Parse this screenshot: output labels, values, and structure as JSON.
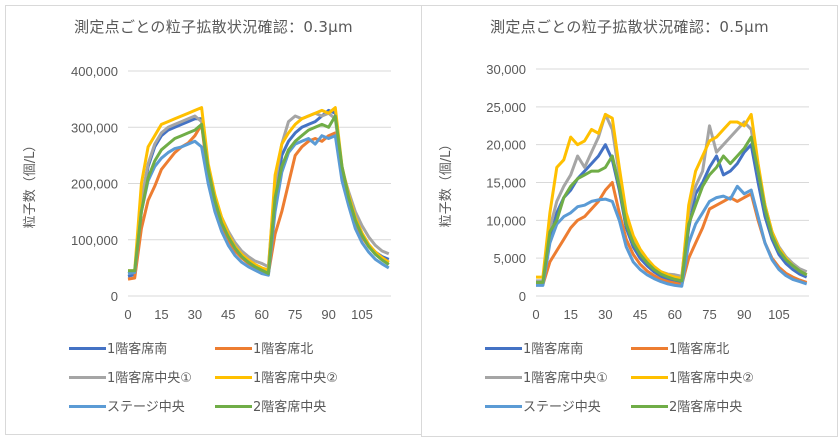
{
  "colors": {
    "1階客席南": "#4472c4",
    "1階客席北": "#ed7d31",
    "1階客席中央①": "#a5a5a5",
    "1階客席中央②": "#ffc000",
    "ステージ中央": "#5b9bd5",
    "2階客席中央": "#70ad47"
  },
  "chart_data": [
    {
      "type": "line",
      "title": "測定点ごとの粒子拡散状況確認：0.3μm",
      "xlabel": "",
      "ylabel": "粒子数（個/L）",
      "xlim": [
        0,
        118
      ],
      "ylim": [
        0,
        400000
      ],
      "grid": true,
      "legend": "bottom",
      "x_ticks": [
        "0",
        "15",
        "30",
        "45",
        "60",
        "75",
        "90",
        "105"
      ],
      "y_ticks": [
        "0",
        "100,000",
        "200,000",
        "300,000",
        "400,000"
      ],
      "x": [
        0,
        3,
        6,
        9,
        12,
        15,
        18,
        21,
        24,
        27,
        30,
        33,
        36,
        39,
        42,
        45,
        48,
        51,
        54,
        57,
        60,
        63,
        66,
        69,
        72,
        75,
        78,
        81,
        84,
        87,
        90,
        93,
        96,
        99,
        102,
        105,
        108,
        111,
        114,
        117
      ],
      "series": [
        {
          "name": "1階客席南",
          "values": [
            35000,
            38000,
            160000,
            230000,
            265000,
            285000,
            295000,
            300000,
            305000,
            310000,
            315000,
            315000,
            230000,
            170000,
            130000,
            105000,
            85000,
            70000,
            60000,
            52000,
            45000,
            40000,
            170000,
            250000,
            275000,
            290000,
            300000,
            305000,
            310000,
            320000,
            330000,
            325000,
            220000,
            180000,
            140000,
            110000,
            90000,
            78000,
            70000,
            65000
          ]
        },
        {
          "name": "1階客席北",
          "values": [
            30000,
            32000,
            120000,
            170000,
            195000,
            225000,
            240000,
            255000,
            265000,
            272000,
            285000,
            305000,
            210000,
            160000,
            125000,
            100000,
            80000,
            68000,
            58000,
            50000,
            44000,
            40000,
            110000,
            150000,
            200000,
            250000,
            265000,
            275000,
            280000,
            275000,
            285000,
            290000,
            210000,
            165000,
            130000,
            105000,
            88000,
            76000,
            68000,
            60000
          ]
        },
        {
          "name": "1階客席中央①",
          "values": [
            40000,
            42000,
            170000,
            235000,
            270000,
            290000,
            300000,
            305000,
            310000,
            315000,
            320000,
            310000,
            225000,
            175000,
            140000,
            115000,
            95000,
            80000,
            70000,
            62000,
            58000,
            52000,
            200000,
            270000,
            310000,
            320000,
            315000,
            320000,
            325000,
            320000,
            325000,
            315000,
            225000,
            185000,
            150000,
            125000,
            105000,
            90000,
            80000,
            75000
          ]
        },
        {
          "name": "1階客席中央②",
          "values": [
            45000,
            45000,
            200000,
            265000,
            285000,
            305000,
            310000,
            315000,
            320000,
            325000,
            330000,
            335000,
            235000,
            180000,
            140000,
            110000,
            88000,
            74000,
            64000,
            56000,
            50000,
            46000,
            215000,
            270000,
            290000,
            305000,
            315000,
            320000,
            325000,
            330000,
            325000,
            335000,
            230000,
            180000,
            140000,
            112000,
            92000,
            78000,
            68000,
            60000
          ]
        },
        {
          "name": "ステージ中央",
          "values": [
            40000,
            42000,
            150000,
            205000,
            230000,
            245000,
            255000,
            262000,
            265000,
            270000,
            275000,
            265000,
            200000,
            150000,
            115000,
            90000,
            72000,
            60000,
            52000,
            46000,
            40000,
            37000,
            150000,
            220000,
            255000,
            270000,
            275000,
            280000,
            270000,
            285000,
            280000,
            285000,
            205000,
            160000,
            120000,
            95000,
            78000,
            65000,
            57000,
            50000
          ]
        },
        {
          "name": "2階客席中央",
          "values": [
            45000,
            45000,
            150000,
            210000,
            240000,
            260000,
            270000,
            280000,
            285000,
            290000,
            295000,
            305000,
            225000,
            170000,
            130000,
            105000,
            85000,
            70000,
            60000,
            52000,
            46000,
            40000,
            175000,
            230000,
            260000,
            275000,
            285000,
            295000,
            300000,
            305000,
            300000,
            320000,
            230000,
            175000,
            135000,
            108000,
            88000,
            74000,
            64000,
            56000
          ]
        }
      ]
    },
    {
      "type": "line",
      "title": "測定点ごとの粒子拡散状況確認：0.5μm",
      "xlabel": "",
      "ylabel": "粒子数（個/L）",
      "xlim": [
        0,
        118
      ],
      "ylim": [
        0,
        30000
      ],
      "grid": true,
      "legend": "bottom",
      "x_ticks": [
        "0",
        "15",
        "30",
        "45",
        "60",
        "75",
        "90",
        "105"
      ],
      "y_ticks": [
        "0",
        "5,000",
        "10,000",
        "15,000",
        "20,000",
        "25,000",
        "30,000"
      ],
      "x": [
        0,
        3,
        6,
        9,
        12,
        15,
        18,
        21,
        24,
        27,
        30,
        33,
        36,
        39,
        42,
        45,
        48,
        51,
        54,
        57,
        60,
        63,
        66,
        69,
        72,
        75,
        78,
        81,
        84,
        87,
        90,
        93,
        96,
        99,
        102,
        105,
        108,
        111,
        114,
        117
      ],
      "series": [
        {
          "name": "1階客席南",
          "values": [
            1600,
            1600,
            7500,
            11000,
            13000,
            14000,
            15500,
            16500,
            17500,
            18500,
            20000,
            18000,
            14000,
            9000,
            6500,
            5000,
            4000,
            3200,
            2600,
            2200,
            2000,
            1800,
            9000,
            13500,
            15000,
            17000,
            18500,
            16000,
            16500,
            17500,
            19000,
            20000,
            15000,
            10500,
            7500,
            5500,
            4300,
            3500,
            2900,
            2500
          ]
        },
        {
          "name": "1階客席北",
          "values": [
            1500,
            1500,
            4500,
            6000,
            7500,
            9000,
            10000,
            10500,
            11500,
            12500,
            14000,
            15000,
            11000,
            7500,
            5500,
            4200,
            3300,
            2700,
            2200,
            1900,
            1700,
            1500,
            5000,
            7000,
            9000,
            11500,
            12000,
            12500,
            13000,
            12500,
            13000,
            13500,
            10000,
            7000,
            5000,
            3800,
            3000,
            2500,
            2100,
            1800
          ]
        },
        {
          "name": "1階客席中央①",
          "values": [
            2000,
            2000,
            9000,
            12500,
            14500,
            16000,
            18500,
            17000,
            19000,
            21000,
            24000,
            22000,
            16000,
            10500,
            7500,
            6000,
            4800,
            3800,
            3200,
            2900,
            2800,
            2600,
            11000,
            14500,
            16500,
            22500,
            19000,
            20000,
            21000,
            22000,
            23000,
            22000,
            16500,
            12000,
            8500,
            6500,
            5200,
            4300,
            3600,
            3200
          ]
        },
        {
          "name": "1階客席中央②",
          "values": [
            2500,
            2500,
            11000,
            17000,
            18000,
            21000,
            20000,
            20500,
            22000,
            21500,
            24000,
            23500,
            17000,
            11000,
            8000,
            6200,
            4900,
            3900,
            3200,
            2800,
            2500,
            2300,
            12000,
            16500,
            18500,
            20500,
            21000,
            22000,
            23000,
            23000,
            22500,
            24000,
            17500,
            12000,
            8500,
            6300,
            5000,
            4000,
            3300,
            2800
          ]
        },
        {
          "name": "ステージ中央",
          "values": [
            1400,
            1400,
            7000,
            9500,
            10500,
            11000,
            11800,
            12000,
            12500,
            12700,
            12800,
            12500,
            10000,
            6500,
            4500,
            3500,
            2800,
            2300,
            1900,
            1600,
            1400,
            1300,
            7000,
            9500,
            11000,
            12500,
            13000,
            13200,
            12800,
            14500,
            13500,
            14000,
            10500,
            7000,
            4800,
            3500,
            2700,
            2200,
            1900,
            1600
          ]
        },
        {
          "name": "2階客席中央",
          "values": [
            1800,
            1800,
            8500,
            10000,
            13000,
            14500,
            15500,
            16000,
            16500,
            16500,
            17000,
            18500,
            14500,
            9500,
            7000,
            5500,
            4400,
            3500,
            2900,
            2500,
            2200,
            2000,
            9500,
            12000,
            14500,
            16000,
            17000,
            18500,
            17500,
            18500,
            19500,
            21000,
            16500,
            11500,
            8000,
            6000,
            4800,
            4000,
            3300,
            2800
          ]
        }
      ]
    }
  ]
}
